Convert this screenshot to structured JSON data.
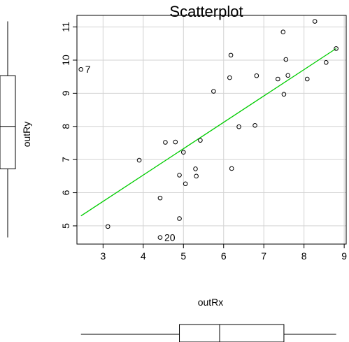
{
  "chart_data": {
    "type": "scatter",
    "title": "Scatterplot",
    "xlabel": "outRx",
    "ylabel": "outRy",
    "xlim": [
      2.35,
      9.05
    ],
    "ylim": [
      4.45,
      11.35
    ],
    "x_ticks": [
      3,
      4,
      5,
      6,
      7,
      8,
      9
    ],
    "y_ticks": [
      5,
      6,
      7,
      8,
      9,
      10,
      11
    ],
    "grid": true,
    "points": [
      {
        "x": 2.45,
        "y": 9.72
      },
      {
        "x": 3.12,
        "y": 4.98
      },
      {
        "x": 3.9,
        "y": 6.98
      },
      {
        "x": 4.42,
        "y": 5.84
      },
      {
        "x": 4.42,
        "y": 4.65
      },
      {
        "x": 4.55,
        "y": 7.52
      },
      {
        "x": 4.8,
        "y": 7.53
      },
      {
        "x": 4.9,
        "y": 6.53
      },
      {
        "x": 4.9,
        "y": 5.22
      },
      {
        "x": 5.0,
        "y": 7.22
      },
      {
        "x": 5.05,
        "y": 6.27
      },
      {
        "x": 5.3,
        "y": 6.72
      },
      {
        "x": 5.32,
        "y": 6.5
      },
      {
        "x": 5.42,
        "y": 7.58
      },
      {
        "x": 5.75,
        "y": 9.06
      },
      {
        "x": 6.15,
        "y": 9.47
      },
      {
        "x": 6.18,
        "y": 10.15
      },
      {
        "x": 6.2,
        "y": 6.73
      },
      {
        "x": 6.38,
        "y": 7.99
      },
      {
        "x": 6.78,
        "y": 8.03
      },
      {
        "x": 6.82,
        "y": 9.53
      },
      {
        "x": 7.35,
        "y": 9.43
      },
      {
        "x": 7.48,
        "y": 10.85
      },
      {
        "x": 7.5,
        "y": 8.97
      },
      {
        "x": 7.55,
        "y": 10.02
      },
      {
        "x": 7.6,
        "y": 9.54
      },
      {
        "x": 8.08,
        "y": 9.43
      },
      {
        "x": 8.27,
        "y": 11.17
      },
      {
        "x": 8.55,
        "y": 9.93
      },
      {
        "x": 8.8,
        "y": 10.35
      }
    ],
    "labeled_points": [
      {
        "label": "7",
        "x": 2.45,
        "y": 9.72
      },
      {
        "label": "20",
        "x": 4.42,
        "y": 4.65
      }
    ],
    "fit_line": {
      "x": [
        2.45,
        8.8
      ],
      "y": [
        5.3,
        10.35
      ],
      "color": "#00cc00"
    },
    "boxplot_x": {
      "whisker_low": 2.45,
      "q1": 4.9,
      "median": 5.9,
      "q3": 7.5,
      "whisker_high": 8.8
    },
    "boxplot_y": {
      "whisker_low": 4.65,
      "q1": 6.72,
      "median": 8.0,
      "q3": 9.53,
      "whisker_high": 11.17
    }
  }
}
